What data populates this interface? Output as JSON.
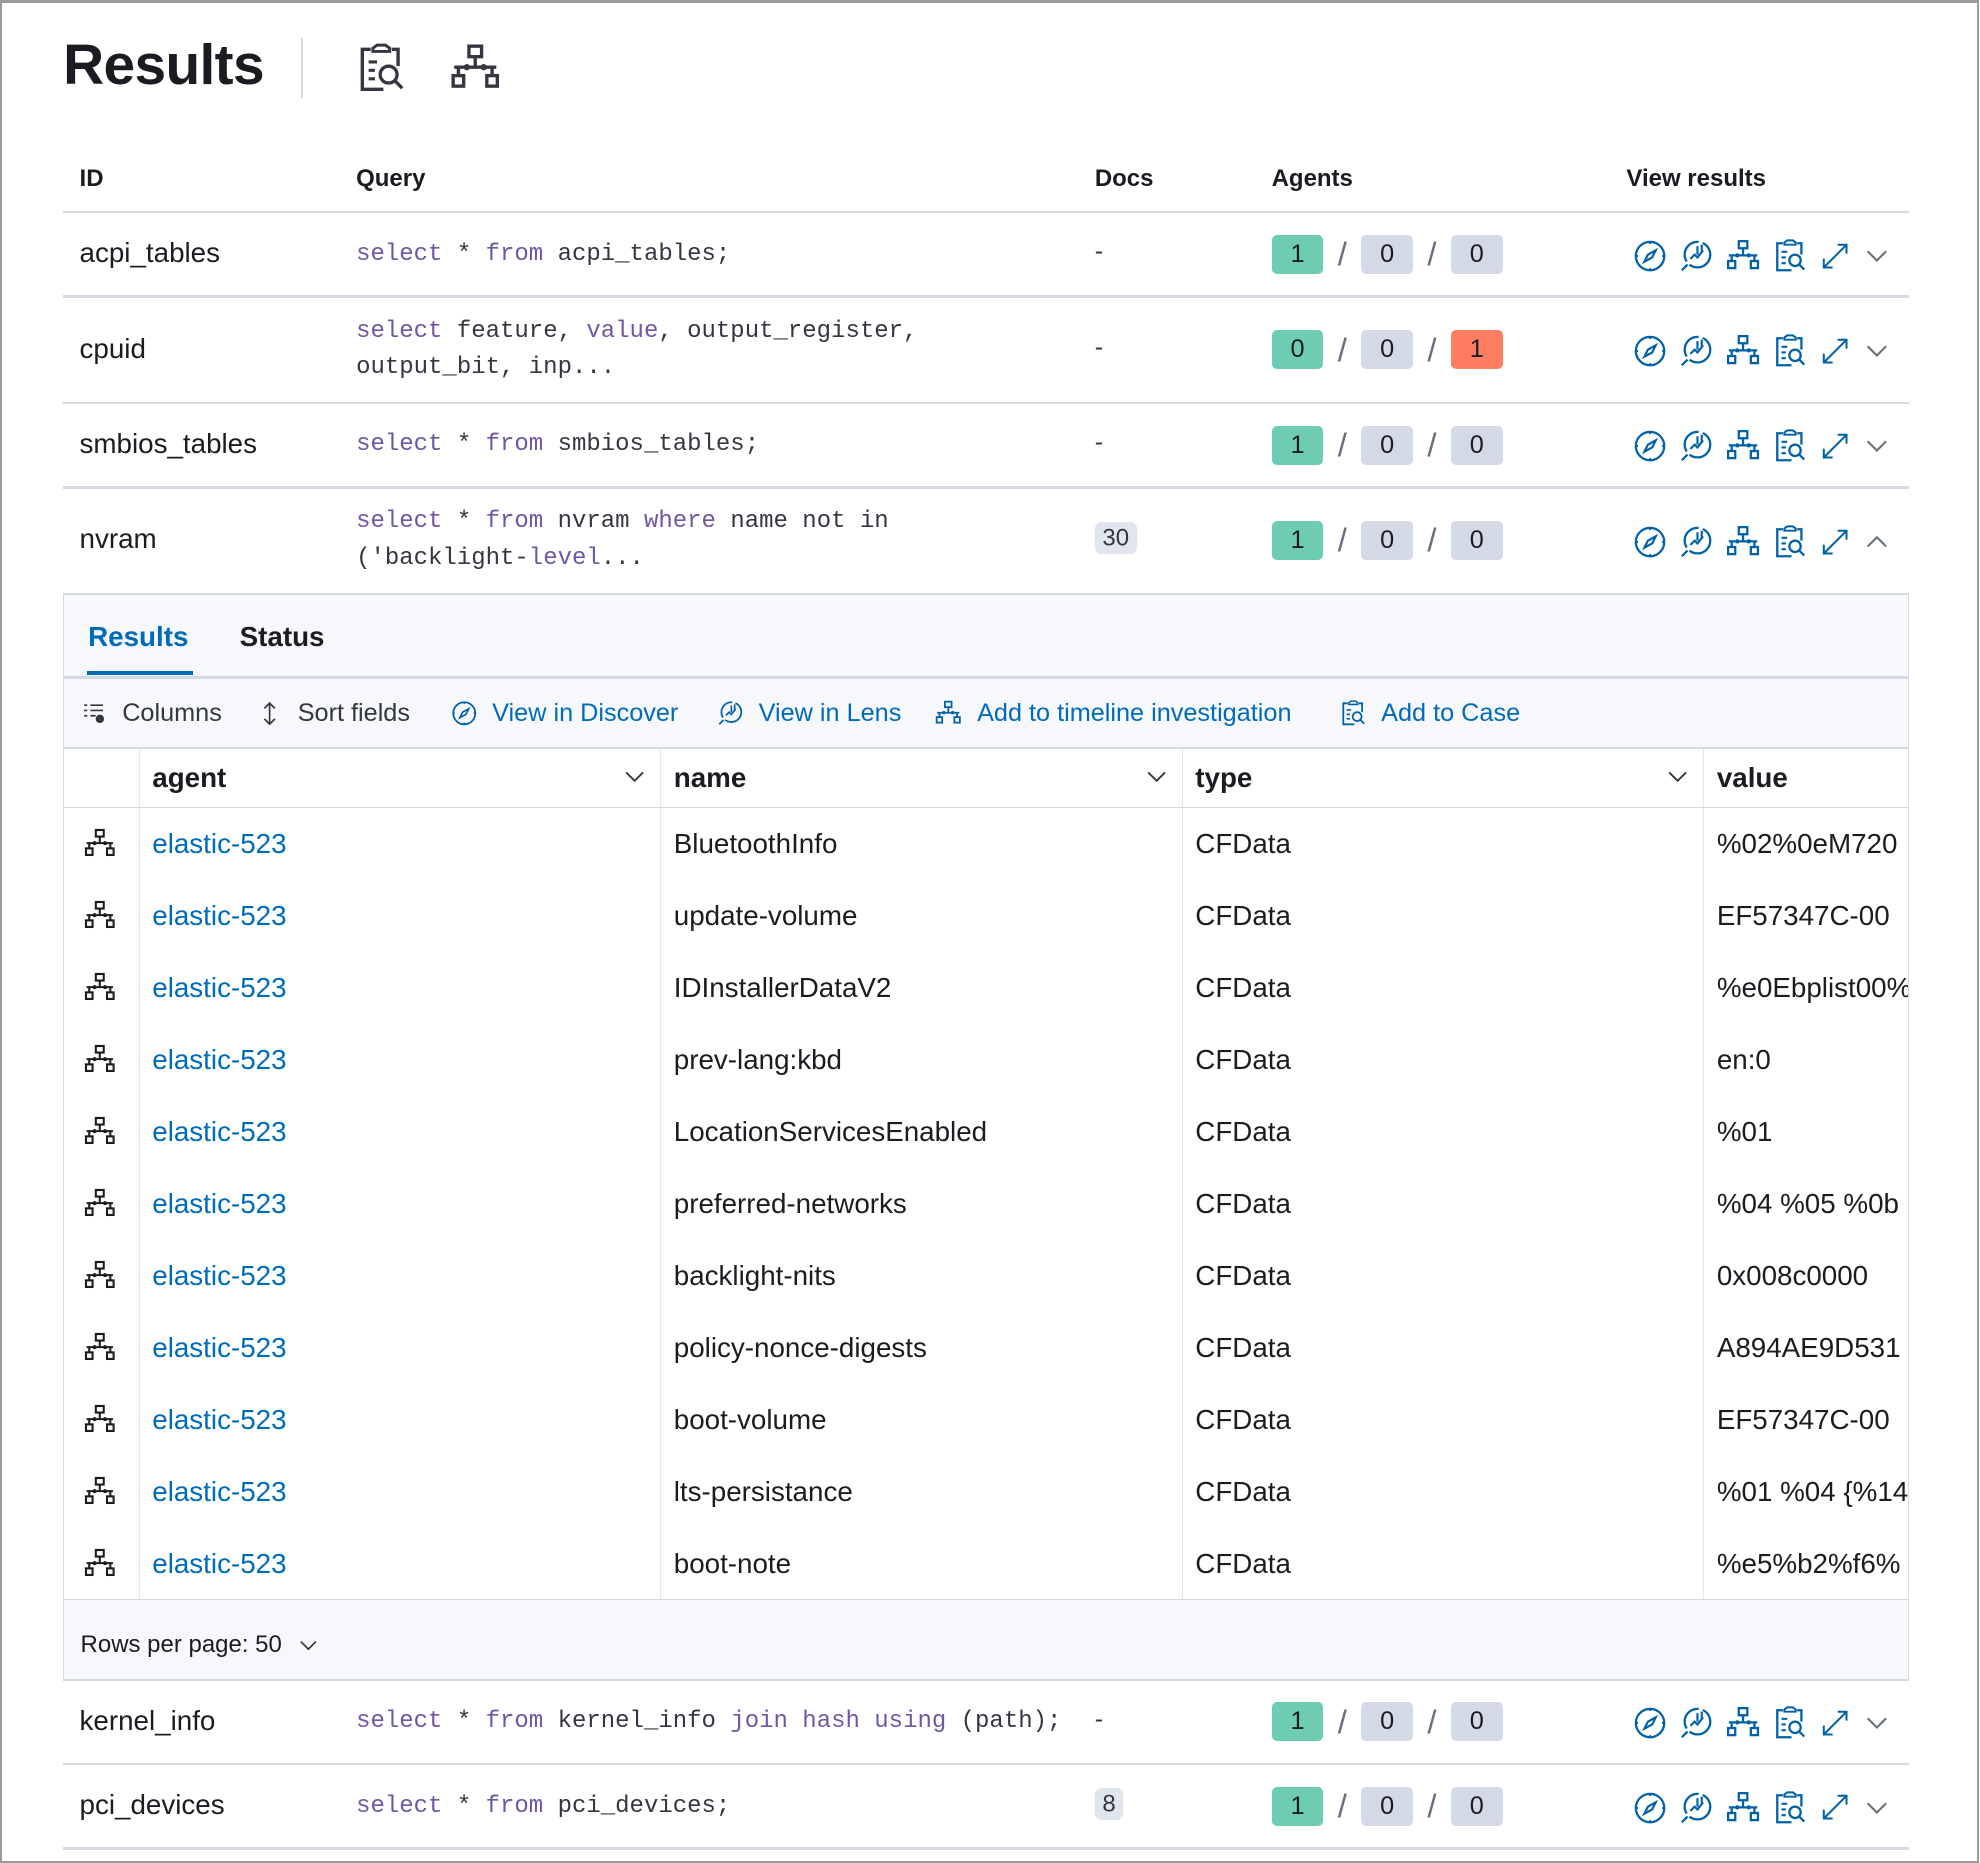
{
  "page": {
    "title": "Results",
    "header_icons": [
      "add-to-case-icon",
      "timeline-icon"
    ]
  },
  "colors": {
    "accent": "#006bb8",
    "success": "#6dccb1",
    "danger": "#ff7e62",
    "neutral": "#d3dae6",
    "keyword": "#7156a3"
  },
  "table": {
    "columns": [
      "ID",
      "Query",
      "Docs",
      "Agents",
      "View results"
    ],
    "rows": [
      {
        "id": "acpi_tables",
        "query": [
          [
            "kw",
            "select"
          ],
          [
            "t",
            " * "
          ],
          [
            "kw",
            "from"
          ],
          [
            "t",
            " acpi_tables;"
          ]
        ],
        "docs": "-",
        "agents": [
          "1",
          "0",
          "0"
        ],
        "agent_colors": [
          "success",
          "neutral",
          "neutral"
        ],
        "expanded": false
      },
      {
        "id": "cpuid",
        "query": [
          [
            "kw",
            "select"
          ],
          [
            "t",
            " feature, "
          ],
          [
            "kw",
            "value"
          ],
          [
            "t",
            ", output_register,\noutput_bit, inp..."
          ]
        ],
        "docs": "-",
        "agents": [
          "0",
          "0",
          "1"
        ],
        "agent_colors": [
          "success",
          "neutral",
          "danger"
        ],
        "expanded": false
      },
      {
        "id": "smbios_tables",
        "query": [
          [
            "kw",
            "select"
          ],
          [
            "t",
            " * "
          ],
          [
            "kw",
            "from"
          ],
          [
            "t",
            " smbios_tables;"
          ]
        ],
        "docs": "-",
        "agents": [
          "1",
          "0",
          "0"
        ],
        "agent_colors": [
          "success",
          "neutral",
          "neutral"
        ],
        "expanded": false
      },
      {
        "id": "nvram",
        "query": [
          [
            "kw",
            "select"
          ],
          [
            "t",
            " * "
          ],
          [
            "kw",
            "from"
          ],
          [
            "t",
            " nvram "
          ],
          [
            "kw",
            "where"
          ],
          [
            "t",
            " name not in\n('backlight-"
          ],
          [
            "kw",
            "level"
          ],
          [
            "t",
            "..."
          ]
        ],
        "docs": "30",
        "agents": [
          "1",
          "0",
          "0"
        ],
        "agent_colors": [
          "success",
          "neutral",
          "neutral"
        ],
        "expanded": true
      },
      {
        "id": "kernel_info",
        "query": [
          [
            "kw",
            "select"
          ],
          [
            "t",
            " * "
          ],
          [
            "kw",
            "from"
          ],
          [
            "t",
            " kernel_info "
          ],
          [
            "kw",
            "join"
          ],
          [
            "t",
            " "
          ],
          [
            "kw",
            "hash"
          ],
          [
            "t",
            " "
          ],
          [
            "kw",
            "using"
          ],
          [
            "t",
            " (path);"
          ]
        ],
        "docs": "-",
        "agents": [
          "1",
          "0",
          "0"
        ],
        "agent_colors": [
          "success",
          "neutral",
          "neutral"
        ],
        "expanded": false
      },
      {
        "id": "pci_devices",
        "query": [
          [
            "kw",
            "select"
          ],
          [
            "t",
            " * "
          ],
          [
            "kw",
            "from"
          ],
          [
            "t",
            " pci_devices;"
          ]
        ],
        "docs": "8",
        "agents": [
          "1",
          "0",
          "0"
        ],
        "agent_colors": [
          "success",
          "neutral",
          "neutral"
        ],
        "expanded": false
      }
    ],
    "view_result_icons": [
      "discover-icon",
      "lens-icon",
      "timeline-icon",
      "add-to-case-icon",
      "expand-icon"
    ]
  },
  "panel": {
    "tabs": [
      "Results",
      "Status"
    ],
    "active_tab": "Results",
    "toolbar": {
      "columns": "Columns",
      "sort": "Sort fields",
      "discover": "View in Discover",
      "lens": "View in Lens",
      "timeline": "Add to timeline investigation",
      "case": "Add to Case"
    },
    "grid": {
      "columns": [
        "agent",
        "name",
        "type",
        "value"
      ],
      "rows": [
        [
          "elastic-523",
          "BluetoothInfo",
          "CFData",
          "%02%0eM720"
        ],
        [
          "elastic-523",
          "update-volume",
          "CFData",
          "EF57347C-00"
        ],
        [
          "elastic-523",
          "IDInstallerDataV2",
          "CFData",
          "%e0Ebplist00%"
        ],
        [
          "elastic-523",
          "prev-lang:kbd",
          "CFData",
          "en:0"
        ],
        [
          "elastic-523",
          "LocationServicesEnabled",
          "CFData",
          "%01"
        ],
        [
          "elastic-523",
          "preferred-networks",
          "CFData",
          "%04 %05 %0b"
        ],
        [
          "elastic-523",
          "backlight-nits",
          "CFData",
          "0x008c0000"
        ],
        [
          "elastic-523",
          "policy-nonce-digests",
          "CFData",
          "A894AE9D531"
        ],
        [
          "elastic-523",
          "boot-volume",
          "CFData",
          "EF57347C-00"
        ],
        [
          "elastic-523",
          "lts-persistance",
          "CFData",
          "%01 %04 {%14"
        ],
        [
          "elastic-523",
          "boot-note",
          "CFData",
          "%e5%b2%f6%"
        ]
      ]
    },
    "rows_per_page": "Rows per page: 50"
  }
}
